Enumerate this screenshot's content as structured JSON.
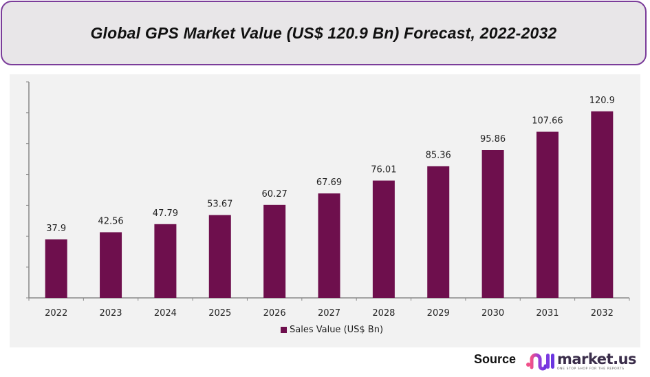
{
  "header": {
    "title": "Global GPS Market Value (US$ 120.9 Bn) Forecast, 2022-2032"
  },
  "chart_data": {
    "type": "bar",
    "title": "Global GPS Market Value (US$ 120.9 Bn) Forecast, 2022-2032",
    "xlabel": "",
    "ylabel": "",
    "categories": [
      "2022",
      "2023",
      "2024",
      "2025",
      "2026",
      "2027",
      "2028",
      "2029",
      "2030",
      "2031",
      "2032"
    ],
    "series": [
      {
        "name": "Sales Value (US$ Bn)",
        "color": "#6e0f4d",
        "values": [
          37.9,
          42.56,
          47.79,
          53.67,
          60.27,
          67.69,
          76.01,
          85.36,
          95.86,
          107.66,
          120.9
        ],
        "labels": [
          "37.9",
          "42.56",
          "47.79",
          "53.67",
          "60.27",
          "67.69",
          "76.01",
          "85.36",
          "95.86",
          "107.66",
          "120.9"
        ]
      }
    ],
    "ylim": [
      0,
      140
    ],
    "y_tick_step": 20,
    "y_tick_labels_visible": false,
    "grid": false,
    "legend_position": "bottom-center"
  },
  "legend": {
    "label": "Sales Value (US$ Bn)"
  },
  "footer": {
    "source_label": "Source",
    "logo_name": "market.us",
    "logo_tagline": "ONE STOP SHOP FOR THE REPORTS"
  },
  "colors": {
    "bar": "#6e0f4d",
    "title_border": "#7b3d9a",
    "title_bg": "#e8e6e8",
    "plot_bg": "#f2f2f2",
    "axis": "#888888"
  }
}
